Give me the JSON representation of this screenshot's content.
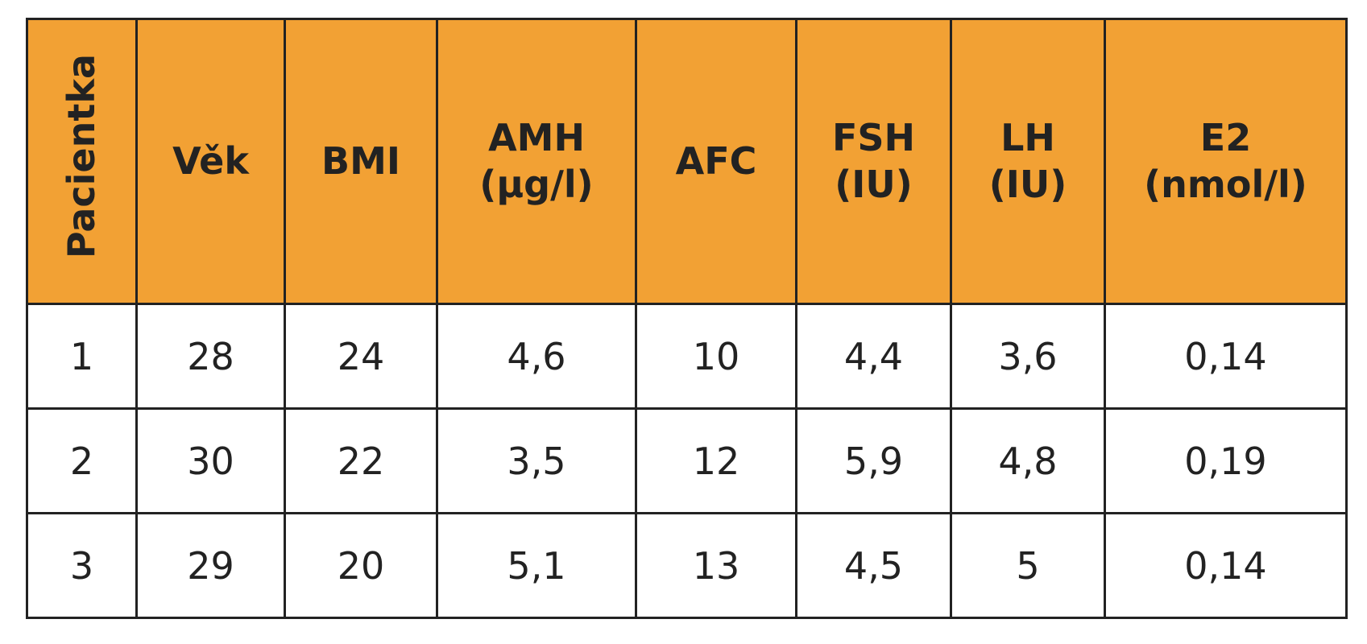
{
  "table": {
    "header": [
      [
        "Pacientka"
      ],
      [
        "Věk"
      ],
      [
        "BMI"
      ],
      [
        "AMH",
        "(µg/l)"
      ],
      [
        "AFC"
      ],
      [
        "FSH",
        "(IU)"
      ],
      [
        "LH",
        "(IU)"
      ],
      [
        "E2",
        "(nmol/l)"
      ]
    ],
    "rows": [
      [
        "1",
        "28",
        "24",
        "4,6",
        "10",
        "4,4",
        "3,6",
        "0,14"
      ],
      [
        "2",
        "30",
        "22",
        "3,5",
        "12",
        "5,9",
        "4,8",
        "0,19"
      ],
      [
        "3",
        "29",
        "20",
        "5,1",
        "13",
        "4,5",
        "5",
        "0,14"
      ]
    ]
  }
}
